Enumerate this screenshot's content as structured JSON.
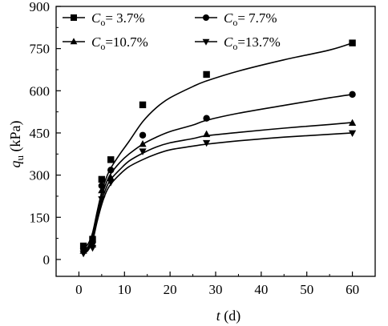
{
  "chart_data": {
    "type": "line",
    "xlabel": {
      "symbol": "t",
      "unit": " (d)"
    },
    "ylabel": {
      "symbol": "q",
      "sub": "u",
      "unit": " (kPa)"
    },
    "xlim": [
      -5,
      65
    ],
    "ylim": [
      -60,
      900
    ],
    "xticks": [
      0,
      10,
      20,
      30,
      40,
      50,
      60
    ],
    "yticks": [
      0,
      150,
      300,
      450,
      600,
      750,
      900
    ],
    "grid": false,
    "legend_position": "top",
    "series": [
      {
        "name": "C_o= 3.7%",
        "legend": {
          "sym": "C",
          "sub": "o",
          "text": "=  3.7%"
        },
        "marker": "square",
        "x": [
          1,
          3,
          5,
          7,
          14,
          28,
          60
        ],
        "y": [
          48,
          72,
          285,
          355,
          550,
          658,
          770
        ],
        "fit": [
          [
            1,
            40
          ],
          [
            2,
            55
          ],
          [
            3,
            95
          ],
          [
            4,
            170
          ],
          [
            5,
            240
          ],
          [
            6,
            290
          ],
          [
            7,
            325
          ],
          [
            9,
            375
          ],
          [
            11,
            420
          ],
          [
            14,
            490
          ],
          [
            17,
            540
          ],
          [
            20,
            575
          ],
          [
            25,
            615
          ],
          [
            28,
            635
          ],
          [
            35,
            670
          ],
          [
            45,
            710
          ],
          [
            55,
            745
          ],
          [
            60,
            770
          ]
        ]
      },
      {
        "name": "C_o= 7.7%",
        "legend": {
          "sym": "C",
          "sub": "o",
          "text": "=  7.7%"
        },
        "marker": "circle",
        "x": [
          1,
          3,
          5,
          7,
          14,
          28,
          60
        ],
        "y": [
          38,
          62,
          262,
          318,
          442,
          502,
          587
        ],
        "fit": [
          [
            1,
            32
          ],
          [
            2,
            45
          ],
          [
            3,
            85
          ],
          [
            4,
            160
          ],
          [
            5,
            225
          ],
          [
            6,
            272
          ],
          [
            7,
            305
          ],
          [
            9,
            345
          ],
          [
            11,
            375
          ],
          [
            14,
            410
          ],
          [
            17,
            435
          ],
          [
            20,
            455
          ],
          [
            25,
            478
          ],
          [
            28,
            495
          ],
          [
            35,
            520
          ],
          [
            45,
            548
          ],
          [
            55,
            575
          ],
          [
            60,
            587
          ]
        ]
      },
      {
        "name": "C_o=10.7%",
        "legend": {
          "sym": "C",
          "sub": "o",
          "text": "=10.7%"
        },
        "marker": "triangle-up",
        "x": [
          1,
          3,
          5,
          7,
          14,
          28,
          60
        ],
        "y": [
          30,
          52,
          245,
          290,
          410,
          445,
          485
        ],
        "fit": [
          [
            1,
            26
          ],
          [
            2,
            38
          ],
          [
            3,
            75
          ],
          [
            4,
            145
          ],
          [
            5,
            210
          ],
          [
            6,
            255
          ],
          [
            7,
            285
          ],
          [
            9,
            320
          ],
          [
            11,
            350
          ],
          [
            14,
            378
          ],
          [
            17,
            400
          ],
          [
            20,
            415
          ],
          [
            25,
            430
          ],
          [
            28,
            440
          ],
          [
            35,
            452
          ],
          [
            45,
            467
          ],
          [
            55,
            480
          ],
          [
            60,
            487
          ]
        ]
      },
      {
        "name": "C_o=13.7%",
        "legend": {
          "sym": "C",
          "sub": "o",
          "text": "=13.7%"
        },
        "marker": "triangle-down",
        "x": [
          1,
          3,
          5,
          7,
          14,
          28,
          60
        ],
        "y": [
          22,
          42,
          215,
          275,
          385,
          415,
          450
        ],
        "fit": [
          [
            1,
            20
          ],
          [
            2,
            32
          ],
          [
            3,
            65
          ],
          [
            4,
            135
          ],
          [
            5,
            195
          ],
          [
            6,
            240
          ],
          [
            7,
            268
          ],
          [
            9,
            303
          ],
          [
            11,
            330
          ],
          [
            14,
            355
          ],
          [
            17,
            375
          ],
          [
            20,
            390
          ],
          [
            25,
            403
          ],
          [
            28,
            410
          ],
          [
            35,
            422
          ],
          [
            45,
            435
          ],
          [
            55,
            445
          ],
          [
            60,
            450
          ]
        ]
      }
    ]
  }
}
